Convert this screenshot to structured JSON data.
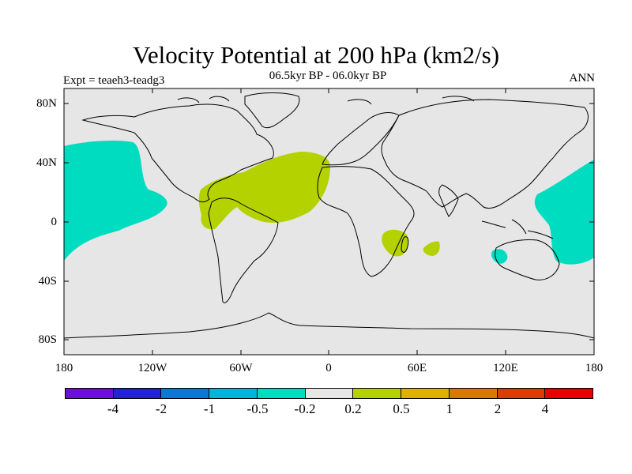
{
  "header": {
    "title": "Velocity Potential at 200 hPa (km2/s)",
    "subtitle": "06.5kyr BP - 06.0kyr BP",
    "left_string": "Expt = teaeh3-teadg3",
    "right_string": "ANN"
  },
  "axes": {
    "lat_ticks": [
      "80N",
      "40N",
      "0",
      "40S",
      "80S"
    ],
    "lon_ticks": [
      "180",
      "120W",
      "60W",
      "0",
      "60E",
      "120E",
      "180"
    ]
  },
  "colors": {
    "land_ocean_background": "#e6e6e6",
    "coastline": "#000000",
    "positive_0_2_to_0_5": "#b4d200",
    "negative_m0_5_to_m0_2": "#00dcc0"
  },
  "colorbar": {
    "colors": [
      "#6a0fdc",
      "#2222d6",
      "#0a78d8",
      "#00b4e0",
      "#00dcc0",
      "#e6e6e6",
      "#b4d200",
      "#dcb400",
      "#dc7800",
      "#dc3c00",
      "#e60000"
    ],
    "labels": [
      "-4",
      "-2",
      "-1",
      "-0.5",
      "-0.2",
      "0.2",
      "0.5",
      "1",
      "2",
      "4"
    ]
  },
  "chart_data": {
    "type": "heatmap",
    "title": "Velocity Potential at 200 hPa (km2/s)",
    "subtitle": "06.5kyr BP - 06.0kyr BP",
    "projection": "cylindrical equidistant",
    "lon_range": [
      -180,
      180
    ],
    "lat_range": [
      -90,
      90
    ],
    "contour_levels": [
      -4,
      -2,
      -1,
      -0.5,
      -0.2,
      0.2,
      0.5,
      1,
      2,
      4
    ],
    "regions": [
      {
        "name": "central North Pacific",
        "level": "-0.5 to -0.2",
        "lon_range": [
          -180,
          -110
        ],
        "lat_range": [
          -25,
          55
        ]
      },
      {
        "name": "western Pacific / Maritime Continent",
        "level": "-0.5 to -0.2",
        "lon_range": [
          140,
          180
        ],
        "lat_range": [
          -30,
          42
        ]
      },
      {
        "name": "southwest Australia",
        "level": "-0.5 to -0.2",
        "lon_range": [
          110,
          120
        ],
        "lat_range": [
          -30,
          -20
        ]
      },
      {
        "name": "tropical Atlantic / northern South America",
        "level": "0.2 to 0.5",
        "lon_range": [
          -85,
          5
        ],
        "lat_range": [
          -5,
          45
        ]
      },
      {
        "name": "Mozambique / Madagascar",
        "level": "0.2 to 0.5",
        "lon_range": [
          35,
          50
        ],
        "lat_range": [
          -25,
          -5
        ]
      },
      {
        "name": "central Indian Ocean",
        "level": "0.2 to 0.5",
        "lon_range": [
          65,
          75
        ],
        "lat_range": [
          -25,
          -15
        ]
      }
    ]
  }
}
